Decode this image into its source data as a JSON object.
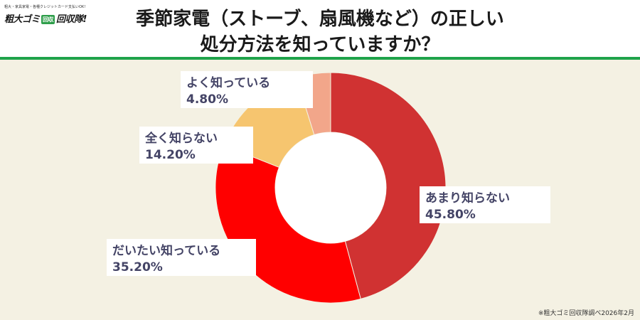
{
  "header": {
    "title_line1": "季節家電（ストーブ、扇風機など）の正しい",
    "title_line2": "処分方法を知っていますか？"
  },
  "logo": {
    "tagline": "粗大・家具家電・各種クレジットカード支払いOK!",
    "name_part1": "粗大ゴミ",
    "badge": "回収",
    "name_part2": "回収隊!"
  },
  "source_note": "※粗大ゴミ回収隊調べ2026年2月",
  "colors": {
    "accent_green": "#1fa34a",
    "background": "#f4f1e3"
  },
  "chart_data": {
    "type": "pie",
    "donut": true,
    "start_angle_deg": 0,
    "direction": "clockwise",
    "slices": [
      {
        "label": "あまり知らない",
        "value": 45.8,
        "display": "45.80%",
        "color": "#d03232"
      },
      {
        "label": "だいたい知っている",
        "value": 35.2,
        "display": "35.20%",
        "color": "#ff0000"
      },
      {
        "label": "全く知らない",
        "value": 14.2,
        "display": "14.20%",
        "color": "#f6c56f"
      },
      {
        "label": "よく知っている",
        "value": 4.8,
        "display": "4.80%",
        "color": "#f2a68a"
      }
    ]
  }
}
